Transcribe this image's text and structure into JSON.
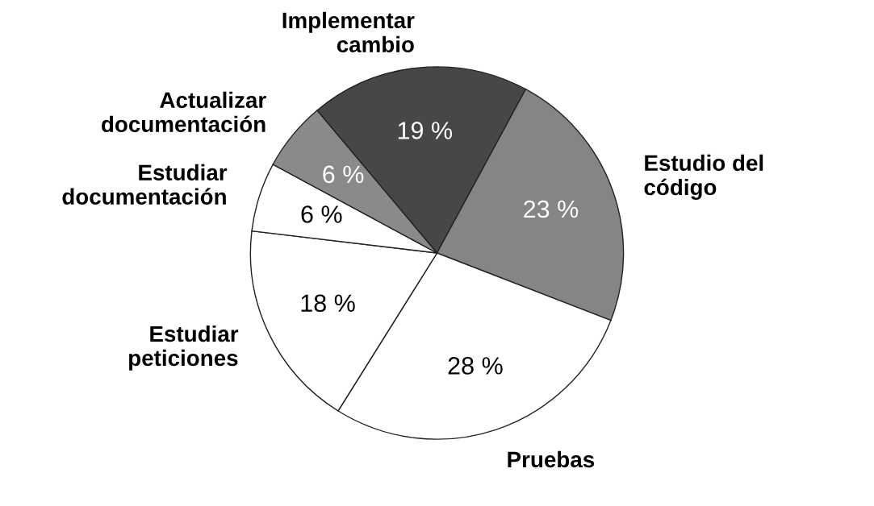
{
  "chart_data": {
    "type": "pie",
    "categories": [
      "Implementar\ncambio",
      "Estudio del\ncódigo",
      "Pruebas",
      "Estudiar\npeticiones",
      "Estudiar\ndocumentación",
      "Actualizar\ndocumentación"
    ],
    "values": [
      19,
      23,
      28,
      18,
      6,
      6
    ],
    "colors": [
      "#474747",
      "#858585",
      "#ffffff",
      "#ffffff",
      "#ffffff",
      "#8a8a8a"
    ],
    "value_labels": [
      "19 %",
      "23 %",
      "28 %",
      "18 %",
      "6 %",
      "6 %"
    ]
  }
}
